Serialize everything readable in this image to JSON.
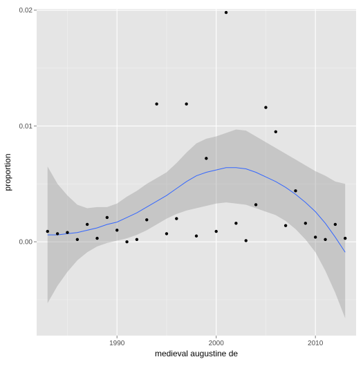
{
  "chart_data": {
    "type": "scatter",
    "xlabel": "medieval augustine de",
    "ylabel": "proportion",
    "xlim": [
      1981.9,
      2014.1
    ],
    "ylim": [
      -0.0081,
      0.0201
    ],
    "x_ticks": [
      1990,
      2000,
      2010
    ],
    "y_ticks": [
      0.0,
      0.01,
      0.02
    ],
    "x_tick_labels": [
      "1990",
      "2000",
      "2010"
    ],
    "y_tick_labels": [
      "0.00",
      "0.01",
      "0.02"
    ],
    "grid": true,
    "legend": "none",
    "points": {
      "x": [
        1983,
        1984,
        1985,
        1986,
        1987,
        1988,
        1989,
        1990,
        1991,
        1992,
        1993,
        1994,
        1995,
        1996,
        1997,
        1998,
        1999,
        2000,
        2001,
        2002,
        2003,
        2004,
        2005,
        2006,
        2007,
        2008,
        2009,
        2010,
        2011,
        2012,
        2013
      ],
      "y": [
        0.0009,
        0.0007,
        0.0008,
        0.0002,
        0.0015,
        0.0003,
        0.0021,
        0.001,
        0.0,
        0.0002,
        0.0019,
        0.0119,
        0.0007,
        0.002,
        0.0119,
        0.0005,
        0.0072,
        0.0009,
        0.0198,
        0.0016,
        0.0001,
        0.0032,
        0.0116,
        0.0095,
        0.0014,
        0.0044,
        0.0016,
        0.0004,
        0.0002,
        0.0015,
        0.0003
      ]
    },
    "smooth": {
      "x": [
        1983,
        1984,
        1985,
        1986,
        1987,
        1988,
        1989,
        1990,
        1991,
        1992,
        1993,
        1994,
        1995,
        1996,
        1997,
        1998,
        1999,
        2000,
        2001,
        2002,
        2003,
        2004,
        2005,
        2006,
        2007,
        2008,
        2009,
        2010,
        2011,
        2012,
        2013
      ],
      "y": [
        0.0006,
        0.0006,
        0.0007,
        0.0008,
        0.001,
        0.0012,
        0.0015,
        0.0017,
        0.0021,
        0.0025,
        0.003,
        0.0035,
        0.004,
        0.0046,
        0.0052,
        0.0057,
        0.006,
        0.0062,
        0.0064,
        0.0064,
        0.0063,
        0.006,
        0.0056,
        0.0052,
        0.0047,
        0.0041,
        0.0034,
        0.0026,
        0.0016,
        0.0004,
        -0.0009
      ],
      "lower": [
        -0.0053,
        -0.0038,
        -0.0026,
        -0.0016,
        -0.0009,
        -0.0004,
        -0.0001,
        0.0001,
        0.0003,
        0.0006,
        0.001,
        0.0015,
        0.002,
        0.0024,
        0.0027,
        0.0029,
        0.0031,
        0.0033,
        0.0034,
        0.0033,
        0.0032,
        0.0029,
        0.0026,
        0.0023,
        0.0018,
        0.0011,
        0.0002,
        -0.0009,
        -0.0025,
        -0.0044,
        -0.0066
      ],
      "upper": [
        0.0065,
        0.005,
        0.004,
        0.0032,
        0.0029,
        0.003,
        0.003,
        0.0033,
        0.0039,
        0.0044,
        0.005,
        0.0055,
        0.006,
        0.0068,
        0.0077,
        0.0085,
        0.0089,
        0.0091,
        0.0094,
        0.0097,
        0.0096,
        0.0091,
        0.0086,
        0.0081,
        0.0076,
        0.0071,
        0.0066,
        0.0061,
        0.0057,
        0.0052,
        0.005
      ]
    },
    "colors": {
      "panel": "#e5e5e5",
      "grid": "#ffffff",
      "point": "#000000",
      "line": "#3366ff",
      "ribbon": "#999999"
    }
  }
}
